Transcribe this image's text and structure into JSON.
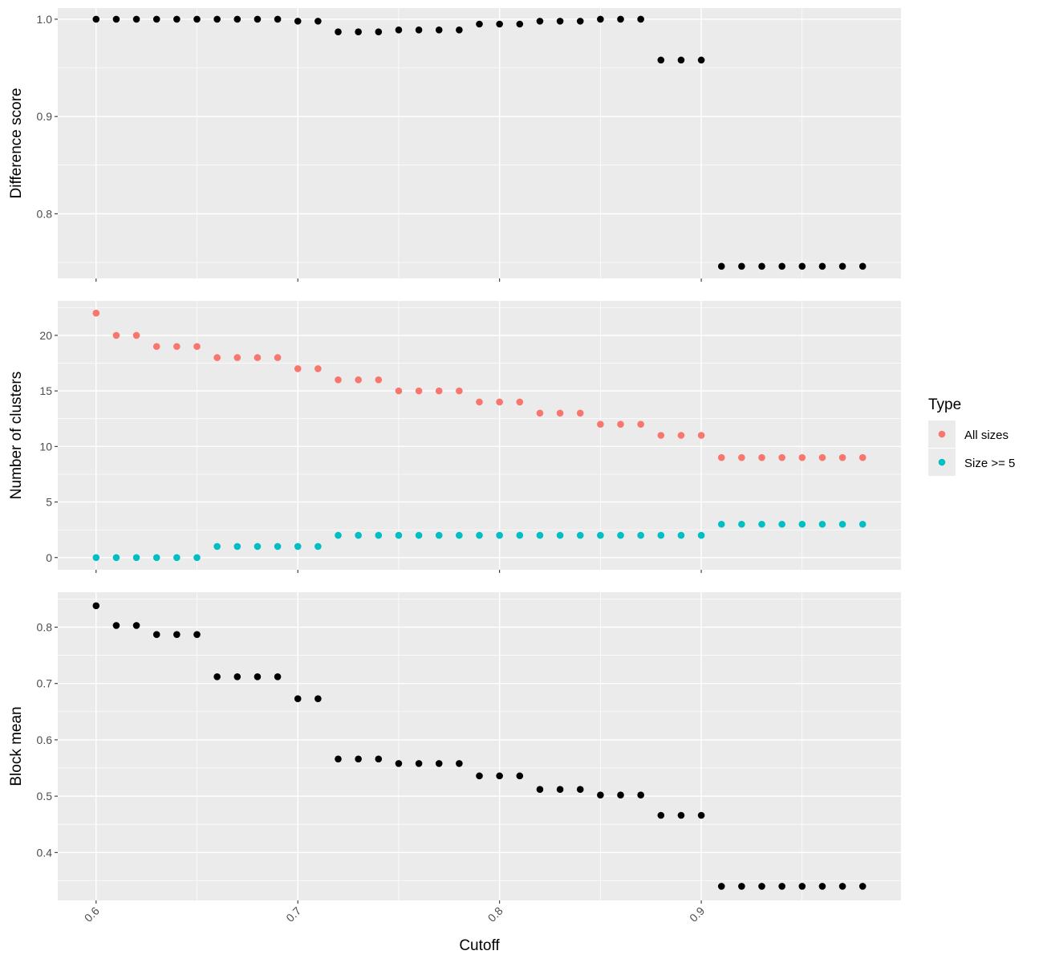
{
  "chart_data": {
    "type": "scatter",
    "layout": "faceted-vertical",
    "shared_x": {
      "label": "Cutoff",
      "ticks": [
        0.6,
        0.7,
        0.8,
        0.9
      ],
      "tick_labels": [
        "0.6",
        "0.7",
        "0.8",
        "0.9"
      ],
      "xlim": [
        0.581,
        0.999
      ]
    },
    "x": [
      0.6,
      0.61,
      0.62,
      0.63,
      0.64,
      0.65,
      0.66,
      0.67,
      0.68,
      0.69,
      0.7,
      0.71,
      0.72,
      0.73,
      0.74,
      0.75,
      0.76,
      0.77,
      0.78,
      0.79,
      0.8,
      0.81,
      0.82,
      0.83,
      0.84,
      0.85,
      0.86,
      0.87,
      0.88,
      0.89,
      0.9,
      0.91,
      0.92,
      0.93,
      0.94,
      0.95,
      0.96,
      0.97,
      0.98
    ],
    "panels": [
      {
        "ylabel": "Difference score",
        "yticks": [
          0.8,
          0.9,
          1.0
        ],
        "ytick_labels": [
          "0.8",
          "0.9",
          "1.0"
        ],
        "ylim": [
          0.7335,
          1.0115
        ],
        "grid": true,
        "series": [
          {
            "color": "#000000",
            "values": [
              1.0,
              1.0,
              1.0,
              1.0,
              1.0,
              1.0,
              1.0,
              1.0,
              1.0,
              1.0,
              0.998,
              0.998,
              0.987,
              0.987,
              0.987,
              0.989,
              0.989,
              0.989,
              0.989,
              0.995,
              0.995,
              0.995,
              0.998,
              0.998,
              0.998,
              1.0,
              1.0,
              1.0,
              0.958,
              0.958,
              0.958,
              0.746,
              0.746,
              0.746,
              0.746,
              0.746,
              0.746,
              0.746,
              0.746
            ]
          }
        ]
      },
      {
        "ylabel": "Number of clusters",
        "yticks": [
          0,
          5,
          10,
          15,
          20
        ],
        "ytick_labels": [
          "0",
          "5",
          "10",
          "15",
          "20"
        ],
        "ylim": [
          -1.1,
          23.1
        ],
        "grid": true,
        "series": [
          {
            "name": "All sizes",
            "color": "#F8766D",
            "values": [
              22,
              20,
              20,
              19,
              19,
              19,
              18,
              18,
              18,
              18,
              17,
              17,
              16,
              16,
              16,
              15,
              15,
              15,
              15,
              14,
              14,
              14,
              13,
              13,
              13,
              12,
              12,
              12,
              11,
              11,
              11,
              9,
              9,
              9,
              9,
              9,
              9,
              9,
              9
            ]
          },
          {
            "name": "Size >= 5",
            "color": "#00BFC4",
            "values": [
              0,
              0,
              0,
              0,
              0,
              0,
              1,
              1,
              1,
              1,
              1,
              1,
              2,
              2,
              2,
              2,
              2,
              2,
              2,
              2,
              2,
              2,
              2,
              2,
              2,
              2,
              2,
              2,
              2,
              2,
              2,
              3,
              3,
              3,
              3,
              3,
              3,
              3,
              3
            ]
          }
        ]
      },
      {
        "ylabel": "Block mean",
        "yticks": [
          0.4,
          0.5,
          0.6,
          0.7,
          0.8
        ],
        "ytick_labels": [
          "0.4",
          "0.5",
          "0.6",
          "0.7",
          "0.8"
        ],
        "ylim": [
          0.315,
          0.862
        ],
        "grid": true,
        "series": [
          {
            "color": "#000000",
            "values": [
              0.838,
              0.803,
              0.803,
              0.787,
              0.787,
              0.787,
              0.712,
              0.712,
              0.712,
              0.712,
              0.673,
              0.673,
              0.566,
              0.566,
              0.566,
              0.558,
              0.558,
              0.558,
              0.558,
              0.536,
              0.536,
              0.536,
              0.512,
              0.512,
              0.512,
              0.502,
              0.502,
              0.502,
              0.466,
              0.466,
              0.466,
              0.34,
              0.34,
              0.34,
              0.34,
              0.34,
              0.34,
              0.34,
              0.34
            ]
          }
        ]
      }
    ],
    "legend": {
      "title": "Type",
      "placement": "right",
      "entries": [
        {
          "label": "All sizes",
          "color": "#F8766D"
        },
        {
          "label": "Size >= 5",
          "color": "#00BFC4"
        }
      ]
    },
    "panel_background": "#EBEBEB",
    "grid_color": "#FFFFFF"
  }
}
